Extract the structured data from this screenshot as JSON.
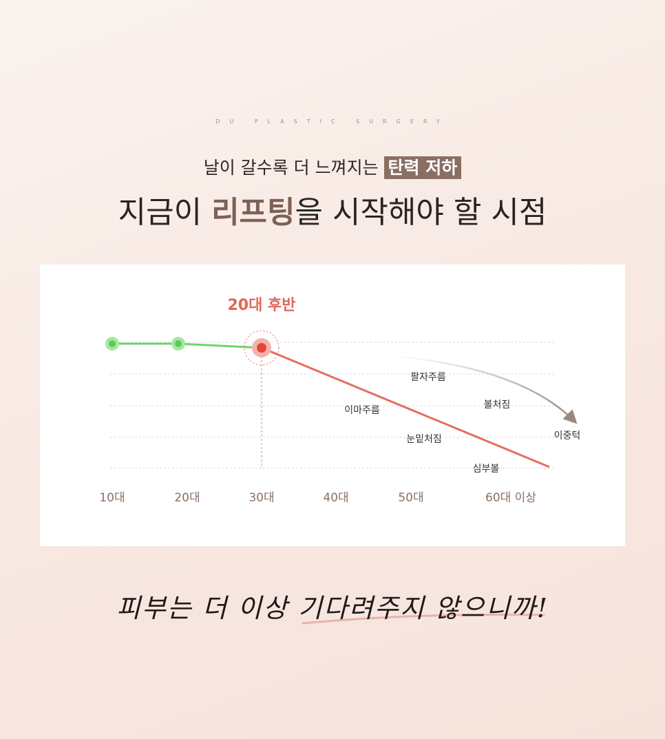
{
  "brand": "DU PLASTIC SURGERY",
  "headline": {
    "line1": {
      "text": "날이 갈수록 더 느껴지는 ",
      "highlight": "탄력 저하"
    },
    "line2": {
      "before": "지금이 ",
      "highlight": "리프팅",
      "after": "을 시작해야 할 시점"
    }
  },
  "chart": {
    "marker_label": "20대 후반",
    "categories": [
      "10대",
      "20대",
      "30대",
      "40대",
      "50대",
      "60대 이상"
    ],
    "annotations": [
      "팔자주름",
      "볼처짐",
      "이마주름",
      "눈밑처짐",
      "이중턱",
      "심부볼"
    ]
  },
  "footer": "피부는 더 이상 기다려주지 않으니까!"
}
